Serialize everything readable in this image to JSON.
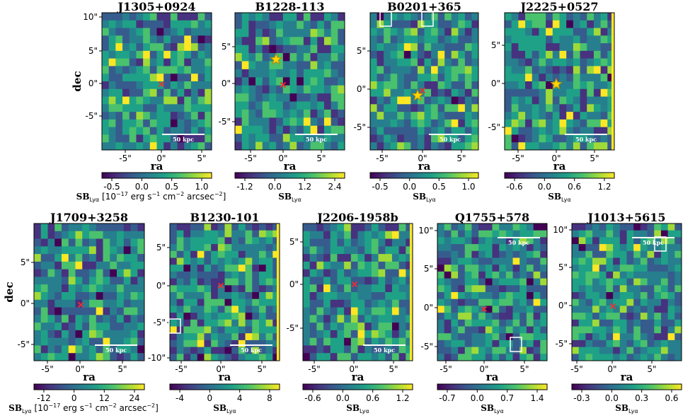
{
  "figure": {
    "palette": [
      "#440154",
      "#46327e",
      "#365c8d",
      "#277f8e",
      "#1fa187",
      "#4ac16d",
      "#a0da39",
      "#fde725"
    ],
    "marker_color": "#ff2a2a",
    "star_color": "#ffd700",
    "box_color": "#ffffff"
  },
  "chart_data": [
    {
      "type": "heatmap",
      "title": "J1305+0924",
      "xlabel": "ra",
      "ylabel": "dec",
      "scale_label": "50 kpc",
      "x_ticks": [
        "-5\"",
        "0\"",
        "5\""
      ],
      "y_ticks": [
        "10\"",
        "5\"",
        "0\"",
        "-5\""
      ],
      "colorbar_ticks": [
        "-0.5",
        "0.0",
        "0.5",
        "1.0"
      ],
      "colorbar_label": "SB_Lyα [10^-17 erg s^-1 cm^-2 arcsec^-2]",
      "cb_text": {
        "main": "SB",
        "sub": "Lyα",
        "rest": " [10",
        "sup1": "−17",
        "rest2": " erg s",
        "sup2": "−1",
        "rest3": " cm",
        "sup3": "−2",
        "rest4": " arcsec",
        "sup4": "−2",
        "end": "]"
      },
      "markers": [
        {
          "kind": "x",
          "ra": 0,
          "dec": 0
        }
      ],
      "boxes": [],
      "rows": 18,
      "cols": 16,
      "seed": 11
    },
    {
      "type": "heatmap",
      "title": "B1228-113",
      "xlabel": "ra",
      "ylabel": "",
      "scale_label": "50 kpc",
      "x_ticks": [
        "-5\"",
        "0\"",
        "5\""
      ],
      "y_ticks": [
        "5\"",
        "0\"",
        "-5\""
      ],
      "colorbar_ticks": [
        "-1.2",
        "0.0",
        "1.2",
        "2.4"
      ],
      "colorbar_label": "SB_Lyα",
      "cb_text": {
        "main": "SB",
        "sub": "Lyα"
      },
      "markers": [
        {
          "kind": "star",
          "ra": -1,
          "dec": 3.5
        },
        {
          "kind": "x",
          "ra": 0,
          "dec": 0
        }
      ],
      "boxes": [],
      "rows": 17,
      "cols": 16,
      "seed": 23
    },
    {
      "type": "heatmap",
      "title": "B0201+365",
      "xlabel": "ra",
      "ylabel": "",
      "scale_label": "50 kpc",
      "x_ticks": [
        "-5\"",
        "0\"",
        "5\""
      ],
      "y_ticks": [
        "5\"",
        "0\"",
        "-5\""
      ],
      "colorbar_ticks": [
        "-0.5",
        "0.0",
        "0.5",
        "1.0"
      ],
      "colorbar_label": "SB_Lyα",
      "cb_text": {
        "main": "SB",
        "sub": "Lyα"
      },
      "markers": [
        {
          "kind": "x",
          "ra": 0,
          "dec": 0
        },
        {
          "kind": "star",
          "ra": -0.5,
          "dec": -0.7
        }
      ],
      "boxes": [
        {
          "ra": -5,
          "dec": 9
        },
        {
          "ra": 0.5,
          "dec": 9
        }
      ],
      "rows": 18,
      "cols": 16,
      "seed": 37
    },
    {
      "type": "heatmap",
      "title": "J2225+0527",
      "xlabel": "ra",
      "ylabel": "",
      "scale_label": "50 kpc",
      "x_ticks": [
        "-5\"",
        "0\"",
        "5\""
      ],
      "y_ticks": [
        "5\"",
        "0\"",
        "-5\""
      ],
      "colorbar_ticks": [
        "-0.6",
        "0.0",
        "0.6",
        "1.2"
      ],
      "colorbar_label": "SB_Lyα",
      "cb_text": {
        "main": "SB",
        "sub": "Lyα"
      },
      "markers": [
        {
          "kind": "star",
          "ra": 0,
          "dec": 0
        }
      ],
      "boxes": [],
      "rows": 18,
      "cols": 16,
      "seed": 41
    },
    {
      "type": "heatmap",
      "title": "J1709+3258",
      "xlabel": "ra",
      "ylabel": "dec",
      "scale_label": "50 kpc",
      "x_ticks": [
        "-5\"",
        "0\"",
        "5\""
      ],
      "y_ticks": [
        "5\"",
        "0\"",
        "-5\""
      ],
      "colorbar_ticks": [
        "-12",
        "0",
        "12",
        "24"
      ],
      "colorbar_label": "SB_Lyα [10^-17 erg s^-1 cm^-2 arcsec^-2]",
      "cb_text": {
        "main": "SB",
        "sub": "Lyα",
        "rest": " [10",
        "sup1": "−17",
        "rest2": " erg s",
        "sup2": "−1",
        "rest3": " cm",
        "sup3": "−2",
        "rest4": " arcsec",
        "sup4": "−2",
        "end": "]"
      },
      "markers": [
        {
          "kind": "x",
          "ra": 0,
          "dec": 0
        }
      ],
      "boxes": [],
      "rows": 18,
      "cols": 16,
      "seed": 53
    },
    {
      "type": "heatmap",
      "title": "B1230-101",
      "xlabel": "ra",
      "ylabel": "",
      "scale_label": "50 kpc",
      "x_ticks": [
        "-5\"",
        "0\"",
        "5\""
      ],
      "y_ticks": [
        "5\"",
        "0\"",
        "-5\"",
        "-10\""
      ],
      "colorbar_ticks": [
        "-4",
        "0",
        "4",
        "8"
      ],
      "colorbar_label": "SB_Lyα",
      "cb_text": {
        "main": "SB",
        "sub": "Lyα"
      },
      "markers": [
        {
          "kind": "x",
          "ra": 0,
          "dec": 0
        }
      ],
      "boxes": [
        {
          "ra": -6,
          "dec": -5.5
        }
      ],
      "rows": 20,
      "cols": 16,
      "seed": 67
    },
    {
      "type": "heatmap",
      "title": "J2206-1958b",
      "xlabel": "ra",
      "ylabel": "",
      "scale_label": "50 kpc",
      "x_ticks": [
        "-5\"",
        "0\"",
        "5\""
      ],
      "y_ticks": [
        "5\"",
        "0\"",
        "-5\""
      ],
      "colorbar_ticks": [
        "-0.6",
        "0.0",
        "0.6",
        "1.2"
      ],
      "colorbar_label": "SB_Lyα",
      "cb_text": {
        "main": "SB",
        "sub": "Lyα"
      },
      "markers": [
        {
          "kind": "x",
          "ra": 0,
          "dec": 0
        }
      ],
      "boxes": [],
      "rows": 18,
      "cols": 16,
      "seed": 79
    },
    {
      "type": "heatmap",
      "title": "Q1755+578",
      "xlabel": "ra",
      "ylabel": "",
      "scale_label": "50 kpc",
      "x_ticks": [
        "-5\"",
        "0\"",
        "5\""
      ],
      "y_ticks": [
        "10\"",
        "5\"",
        "0\"",
        "-5\""
      ],
      "colorbar_ticks": [
        "-0.7",
        "0.0",
        "0.7",
        "1.4"
      ],
      "colorbar_label": "SB_Lyα",
      "cb_text": {
        "main": "SB",
        "sub": "Lyα"
      },
      "markers": [
        {
          "kind": "x",
          "ra": 0,
          "dec": 0
        }
      ],
      "boxes": [
        {
          "ra": 4,
          "dec": -4.8
        }
      ],
      "rows": 20,
      "cols": 16,
      "seed": 83
    },
    {
      "type": "heatmap",
      "title": "J1013+5615",
      "xlabel": "ra",
      "ylabel": "",
      "scale_label": "50 kpc",
      "x_ticks": [
        "-5\"",
        "0\"",
        "5\""
      ],
      "y_ticks": [
        "10\"",
        "5\"",
        "0\"",
        "-5\""
      ],
      "colorbar_ticks": [
        "-0.3",
        "0.0",
        "0.3",
        "0.6"
      ],
      "colorbar_label": "SB_Lyα",
      "cb_text": {
        "main": "SB",
        "sub": "Lyα"
      },
      "markers": [
        {
          "kind": "x",
          "ra": 0,
          "dec": 0
        }
      ],
      "boxes": [
        {
          "ra": 6,
          "dec": 8.5
        }
      ],
      "rows": 20,
      "cols": 16,
      "seed": 97
    }
  ]
}
